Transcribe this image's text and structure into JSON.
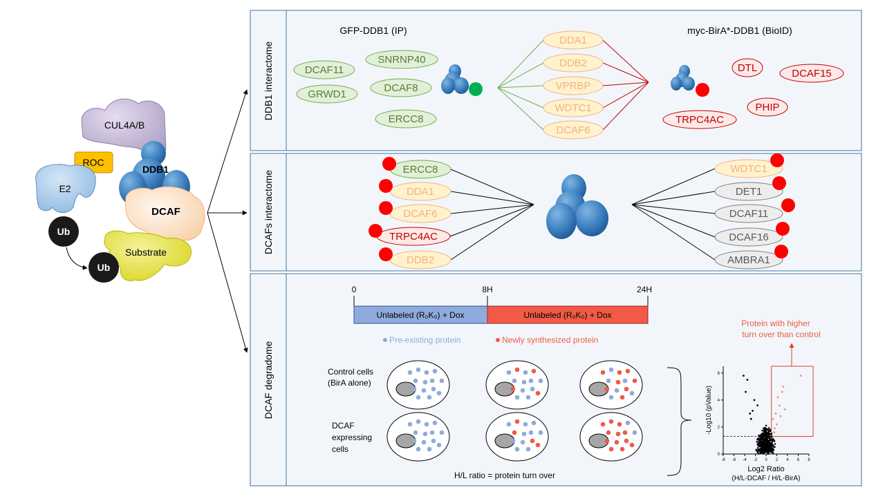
{
  "complex": {
    "cul": "CUL4A/B",
    "roc": "ROC",
    "ddb1": "DDB1",
    "e2": "E2",
    "dcaf": "DCAF",
    "substrate": "Substrate",
    "ub1": "Ub",
    "ub2": "Ub"
  },
  "panel1": {
    "side_label": "DDB1 interactome",
    "ip_title": "GFP-DDB1 (IP)",
    "bioid_title": "myc-BirA*-DDB1 (BioID)",
    "ip_only": [
      "DCAF11",
      "SNRNP40",
      "GRWD1",
      "DCAF8",
      "ERCC8"
    ],
    "shared": [
      "DDA1",
      "DDB2",
      "VPRBP",
      "WDTC1",
      "DCAF6"
    ],
    "bioid_only": [
      "DTL",
      "DCAF15",
      "PHIP",
      "TRPC4AC"
    ]
  },
  "panel2": {
    "side_label": "DCAFs interactome",
    "left": [
      "ERCC8",
      "DDA1",
      "DCAF6",
      "TRPC4AC",
      "DDB2"
    ],
    "right": [
      "WDTC1",
      "DET1",
      "DCAF11",
      "DCAF16",
      "AMBRA1"
    ]
  },
  "panel3": {
    "side_label": "DCAF degradome",
    "t0": "0",
    "t8": "8H",
    "t24": "24H",
    "bar1": "Unlabeled (R₀K₀) + Dox",
    "bar2": "Unlabeled (R₀K₀) + Dox",
    "legend_pre": "Pre-existing protein",
    "legend_new": "Newly synthesized protein",
    "row1_l1": "Control cells",
    "row1_l2": "(BirA alone)",
    "row2_l1": "DCAF",
    "row2_l2": "expressing",
    "row2_l3": "cells",
    "ratio": "H/L ratio = protein turn over",
    "callout_l1": "Protein with higher",
    "callout_l2": "turn over than control",
    "volcano": {
      "ylabel": "-Log10 (pValue)",
      "xlabel": "Log2 Ratio",
      "xlabel2": "(H/L-DCAF / H/L-BirA)",
      "xticks": [
        "-8",
        "-6",
        "-4",
        "-2",
        "0",
        "2",
        "4",
        "6",
        "8"
      ],
      "yticks": [
        "0",
        "2",
        "4",
        "6"
      ]
    }
  },
  "colors": {
    "green_fill": "#e2efd9",
    "green_stroke": "#70ad47",
    "green_text": "#548235",
    "orange_fill": "#fff2cc",
    "orange_stroke": "#f4b183",
    "orange_text": "#f4b183",
    "red_fill": "#fde9e7",
    "red_stroke": "#c00000",
    "red_text": "#c00000",
    "grey_fill": "#ededed",
    "grey_stroke": "#7f7f7f",
    "grey_text": "#595959",
    "pre": "#8faadc",
    "new": "#f05a46",
    "panel_bg": "#f2f6fb",
    "panel_border": "#41719c"
  }
}
